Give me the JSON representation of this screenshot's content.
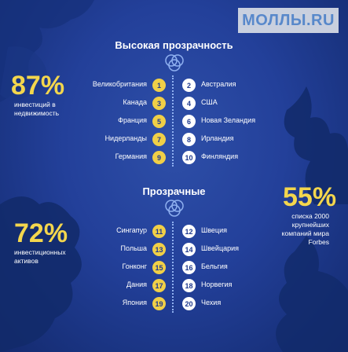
{
  "watermark": "МОЛЛЫ.RU",
  "high": {
    "title": "Высокая прозрачность",
    "left": [
      {
        "label": "Великобритания",
        "num": "1"
      },
      {
        "label": "Канада",
        "num": "3"
      },
      {
        "label": "Франция",
        "num": "5"
      },
      {
        "label": "Нидерланды",
        "num": "7"
      },
      {
        "label": "Германия",
        "num": "9"
      }
    ],
    "right": [
      {
        "label": "Австралия",
        "num": "2"
      },
      {
        "label": "США",
        "num": "4"
      },
      {
        "label": "Новая Зеландия",
        "num": "6"
      },
      {
        "label": "Ирландия",
        "num": "8"
      },
      {
        "label": "Финляндия",
        "num": "10"
      }
    ]
  },
  "transparent": {
    "title": "Прозрачные",
    "left": [
      {
        "label": "Сингапур",
        "num": "11"
      },
      {
        "label": "Польша",
        "num": "13"
      },
      {
        "label": "Гонконг",
        "num": "15"
      },
      {
        "label": "Дания",
        "num": "17"
      },
      {
        "label": "Япония",
        "num": "19"
      }
    ],
    "right": [
      {
        "label": "Швеция",
        "num": "12"
      },
      {
        "label": "Швейцария",
        "num": "14"
      },
      {
        "label": "Бельгия",
        "num": "16"
      },
      {
        "label": "Норвегия",
        "num": "18"
      },
      {
        "label": "Чехия",
        "num": "20"
      }
    ]
  },
  "stats": {
    "s1": {
      "value": "87%",
      "caption1": "инвестиций в",
      "caption2": "недвижимость"
    },
    "s2": {
      "value": "72%",
      "caption1": "инвестиционных",
      "caption2": "активов"
    },
    "s3": {
      "value": "55%",
      "caption1": "списка 2000",
      "caption2": "крупнейших",
      "caption3": "компаний мира",
      "caption4": "Forbes"
    }
  },
  "colors": {
    "badge_odd": "#f0cf47",
    "badge_even": "#ffffff",
    "accent": "#f3d64d",
    "background": "#23409a"
  }
}
